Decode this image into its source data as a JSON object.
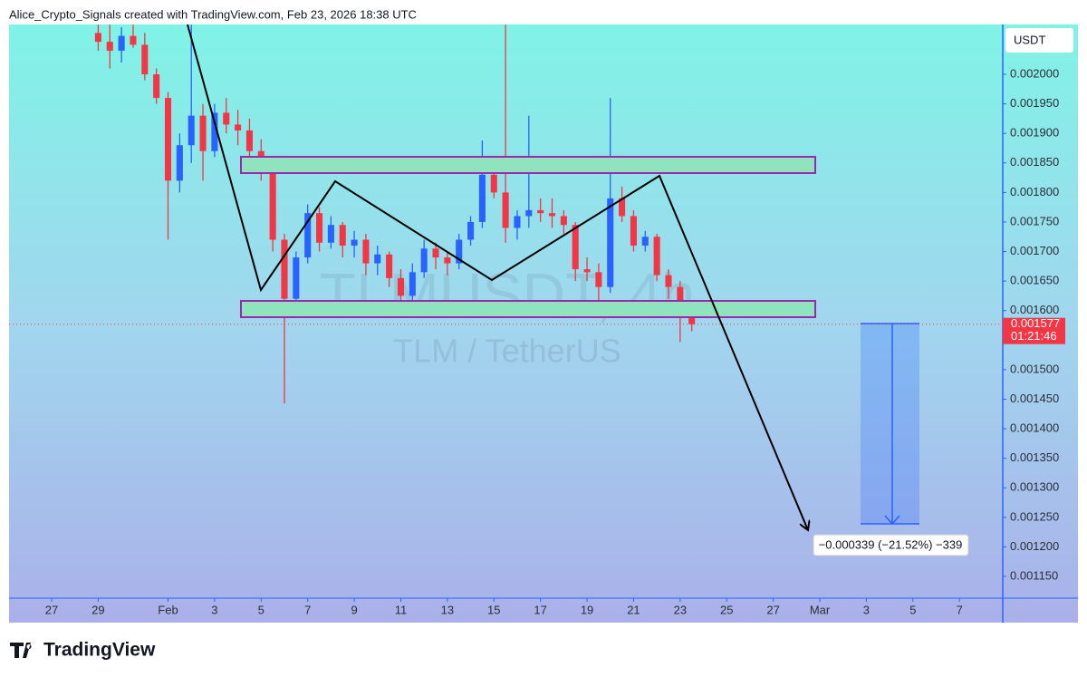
{
  "header": "Alice_Crypto_Signals created with TradingView.com, Feb 23, 2026 18:38 UTC",
  "brand": "TradingView",
  "chart_data": {
    "type": "candlestick",
    "watermark_symbol": "TLMUSDT, 4h",
    "watermark_name": "TLM / TetherUS",
    "currency": "USDT",
    "last_price": 0.001577,
    "countdown": "01:21:46",
    "measure_label": "−0.000339 (−21.52%) −339",
    "up_color": "#2962ff",
    "down_color": "#f23645",
    "xlim": [
      25.17,
      67.86
    ],
    "ylim": [
      0.0011132,
      0.0020844
    ],
    "xticks": [
      27,
      29,
      {
        "value": 32,
        "label": "Feb"
      },
      {
        "value": 34,
        "label": "3"
      },
      {
        "value": 36,
        "label": "5"
      },
      {
        "value": 38,
        "label": "7"
      },
      {
        "value": 40,
        "label": "9"
      },
      {
        "value": 42,
        "label": "11"
      },
      {
        "value": 44,
        "label": "13"
      },
      {
        "value": 46,
        "label": "15"
      },
      {
        "value": 48,
        "label": "17"
      },
      {
        "value": 50,
        "label": "19"
      },
      {
        "value": 52,
        "label": "21"
      },
      {
        "value": 54,
        "label": "23"
      },
      {
        "value": 56,
        "label": "25"
      },
      {
        "value": 58,
        "label": "27"
      },
      {
        "value": 60,
        "label": "Mar"
      },
      {
        "value": 62,
        "label": "3"
      },
      {
        "value": 64,
        "label": "5"
      },
      {
        "value": 66,
        "label": "7"
      }
    ],
    "yticks": [
      {
        "value": 0.002,
        "label": "0.002000"
      },
      {
        "value": 0.00195,
        "label": "0.001950"
      },
      {
        "value": 0.0019,
        "label": "0.001900"
      },
      {
        "value": 0.00185,
        "label": "0.001850"
      },
      {
        "value": 0.0018,
        "label": "0.001800"
      },
      {
        "value": 0.00175,
        "label": "0.001750"
      },
      {
        "value": 0.0017,
        "label": "0.001700"
      },
      {
        "value": 0.00165,
        "label": "0.001650"
      },
      {
        "value": 0.0016,
        "label": "0.001600"
      },
      {
        "value": 0.00155,
        "label": "0.001550"
      },
      {
        "value": 0.0015,
        "label": "0.001500"
      },
      {
        "value": 0.00145,
        "label": "0.001450"
      },
      {
        "value": 0.0014,
        "label": "0.001400"
      },
      {
        "value": 0.00135,
        "label": "0.001350"
      },
      {
        "value": 0.0013,
        "label": "0.001300"
      },
      {
        "value": 0.00125,
        "label": "0.001250"
      },
      {
        "value": 0.0012,
        "label": "0.001200"
      },
      {
        "value": 0.00115,
        "label": "0.001150"
      }
    ],
    "x": [
      29,
      29.5,
      30,
      30.5,
      31,
      31.5,
      32,
      32.5,
      33,
      33.5,
      34,
      34.5,
      35,
      35.5,
      36,
      36.5,
      37,
      37.5,
      38,
      38.5,
      39,
      39.5,
      40,
      40.5,
      41,
      41.5,
      42,
      42.5,
      43,
      43.5,
      44,
      44.5,
      45,
      45.5,
      46,
      46.5,
      47,
      47.5,
      48,
      48.5,
      49,
      49.5,
      50,
      50.5,
      51,
      51.5,
      52,
      52.5,
      53,
      53.5,
      54,
      54.5
    ],
    "open": [
      0.00207,
      0.002055,
      0.00204,
      0.002065,
      0.00205,
      0.002,
      0.00196,
      0.00182,
      0.00188,
      0.00193,
      0.00187,
      0.001935,
      0.001915,
      0.001905,
      0.00187,
      0.00184,
      0.00172,
      0.00162,
      0.00169,
      0.001765,
      0.001715,
      0.001745,
      0.00171,
      0.00172,
      0.00168,
      0.001695,
      0.001655,
      0.001625,
      0.001665,
      0.001705,
      0.00169,
      0.00168,
      0.00172,
      0.00175,
      0.00183,
      0.0018,
      0.00174,
      0.00176,
      0.00177,
      0.001765,
      0.00176,
      0.001745,
      0.00167,
      0.001665,
      0.00164,
      0.00179,
      0.00176,
      0.00171,
      0.001725,
      0.00166,
      0.00164,
      0.0016
    ],
    "high": [
      0.002084,
      0.002084,
      0.00208,
      0.002084,
      0.00207,
      0.00201,
      0.00197,
      0.0019,
      0.002084,
      0.00195,
      0.00195,
      0.00196,
      0.00194,
      0.001925,
      0.00189,
      0.00185,
      0.00173,
      0.0017,
      0.00178,
      0.001775,
      0.00176,
      0.00175,
      0.001735,
      0.00173,
      0.00171,
      0.0017,
      0.00167,
      0.00168,
      0.00172,
      0.001715,
      0.0017,
      0.00173,
      0.00176,
      0.001888,
      0.001845,
      0.002084,
      0.00177,
      0.00193,
      0.00179,
      0.00179,
      0.00177,
      0.00175,
      0.00169,
      0.00168,
      0.00196,
      0.00181,
      0.00177,
      0.001735,
      0.00173,
      0.00167,
      0.00165,
      0.00161
    ],
    "low": [
      0.00204,
      0.00201,
      0.00202,
      0.002045,
      0.00199,
      0.00195,
      0.00172,
      0.0018,
      0.00185,
      0.00182,
      0.00186,
      0.0019,
      0.00188,
      0.00185,
      0.00182,
      0.0017,
      0.001443,
      0.00161,
      0.00168,
      0.0017,
      0.001705,
      0.00169,
      0.00169,
      0.00166,
      0.00166,
      0.00164,
      0.00161,
      0.001615,
      0.001655,
      0.00167,
      0.00166,
      0.00167,
      0.00171,
      0.00174,
      0.00179,
      0.001715,
      0.00172,
      0.00174,
      0.00175,
      0.00174,
      0.00173,
      0.00165,
      0.00165,
      0.001605,
      0.00163,
      0.00175,
      0.0017,
      0.0017,
      0.00165,
      0.00162,
      0.001547,
      0.001565
    ],
    "close": [
      0.002055,
      0.00204,
      0.002065,
      0.00205,
      0.002,
      0.00196,
      0.00182,
      0.00188,
      0.00193,
      0.00187,
      0.001935,
      0.001915,
      0.001905,
      0.00187,
      0.00184,
      0.00172,
      0.00162,
      0.00169,
      0.001765,
      0.001715,
      0.001745,
      0.00171,
      0.00172,
      0.00168,
      0.001695,
      0.001655,
      0.001625,
      0.001665,
      0.001705,
      0.00169,
      0.00168,
      0.00172,
      0.00175,
      0.00183,
      0.0018,
      0.00174,
      0.00176,
      0.00177,
      0.001765,
      0.00176,
      0.001745,
      0.00167,
      0.001665,
      0.00164,
      0.00179,
      0.00176,
      0.00171,
      0.001725,
      0.00166,
      0.00164,
      0.0016,
      0.001577
    ]
  }
}
